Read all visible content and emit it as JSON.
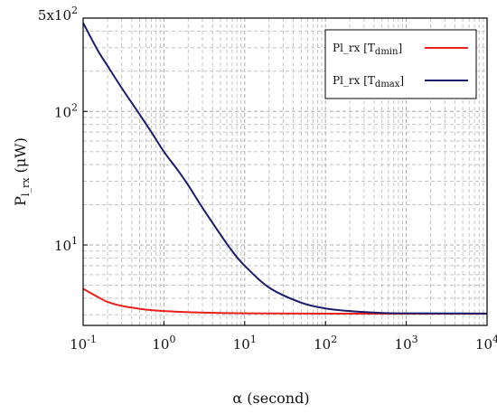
{
  "chart_data": {
    "type": "line",
    "title": "",
    "xlabel": "α (second)",
    "ylabel_main": "P",
    "ylabel_sub": "l_rx",
    "ylabel_unit": " (μW)",
    "xscale": "log",
    "yscale": "log",
    "xlim": [
      0.1,
      10000
    ],
    "ylim": [
      2.5,
      500
    ],
    "grid": true,
    "legend_position": "top-right",
    "x_ticks": [
      {
        "value": 0.1,
        "base": "10",
        "exp": "-1"
      },
      {
        "value": 1,
        "base": "10",
        "exp": "0"
      },
      {
        "value": 10,
        "base": "10",
        "exp": "1"
      },
      {
        "value": 100,
        "base": "10",
        "exp": "2"
      },
      {
        "value": 1000,
        "base": "10",
        "exp": "3"
      },
      {
        "value": 10000,
        "base": "10",
        "exp": "4"
      }
    ],
    "y_ticks": [
      {
        "value": 10,
        "base": "10",
        "exp": "1"
      },
      {
        "value": 100,
        "base": "10",
        "exp": "2"
      },
      {
        "value": 500,
        "base": "5x10",
        "exp": "2"
      }
    ],
    "series": [
      {
        "name_main": "Pl_rx [T",
        "name_sub": "dmin",
        "name_end": "]",
        "color": "#e8211d",
        "x": [
          0.1,
          0.15,
          0.2,
          0.3,
          0.5,
          0.7,
          1,
          2,
          5,
          10,
          100,
          1000,
          10000
        ],
        "y": [
          4.7,
          4.1,
          3.75,
          3.5,
          3.33,
          3.25,
          3.2,
          3.14,
          3.1,
          3.08,
          3.06,
          3.06,
          3.06
        ]
      },
      {
        "name_main": "Pl_rx [T",
        "name_sub": "dmax",
        "name_end": "]",
        "color": "#1b1c6b",
        "x": [
          0.1,
          0.15,
          0.2,
          0.3,
          0.5,
          0.7,
          1,
          1.5,
          2,
          3,
          5,
          7,
          10,
          20,
          50,
          100,
          200,
          500,
          1000,
          10000
        ],
        "y": [
          460,
          290,
          220,
          150,
          95,
          70,
          50,
          36,
          28,
          19,
          12,
          9,
          7,
          4.8,
          3.7,
          3.35,
          3.2,
          3.1,
          3.08,
          3.07
        ]
      }
    ]
  }
}
